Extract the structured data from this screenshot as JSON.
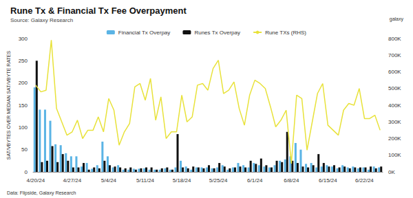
{
  "chart_data": {
    "type": "bar",
    "title": "Rune Tx & Financial Tx Fee Overpayment",
    "subtitle": "Source: Galaxy Research",
    "source_note": "Data: Flipside, Galaxy Research",
    "brand": "galaxy",
    "y_label": "SAT/VBYTES OVER MEDIAN SAT/VBYTE RATES",
    "categories": [
      "4/20/24",
      null,
      null,
      null,
      null,
      null,
      null,
      "4/27/24",
      null,
      null,
      null,
      null,
      null,
      null,
      "5/4/24",
      null,
      null,
      null,
      null,
      null,
      null,
      "5/11/24",
      null,
      null,
      null,
      null,
      null,
      null,
      "5/18/24",
      null,
      null,
      null,
      null,
      null,
      null,
      "5/25/24",
      null,
      null,
      null,
      null,
      null,
      null,
      "6/1/24",
      null,
      null,
      null,
      null,
      null,
      null,
      "6/8/24",
      null,
      null,
      null,
      null,
      null,
      null,
      "6/15/24",
      null,
      null,
      null,
      null,
      null,
      null,
      "6/22/24",
      null,
      null,
      null
    ],
    "series": [
      {
        "name": "Financial Tx Overpay",
        "type": "bar",
        "color": "#5bb4e5",
        "values": [
          190,
          140,
          140,
          115,
          62,
          60,
          42,
          35,
          35,
          12,
          20,
          7,
          15,
          68,
          35,
          10,
          15,
          5,
          5,
          7,
          7,
          8,
          5,
          5,
          5,
          8,
          5,
          10,
          25,
          12,
          5,
          10,
          10,
          10,
          8,
          10,
          15,
          5,
          10,
          20,
          15,
          10,
          20,
          15,
          12,
          10,
          15,
          25,
          28,
          35,
          65,
          50,
          18,
          20,
          10,
          12,
          15,
          12,
          8,
          15,
          10,
          12,
          8,
          10,
          5,
          12,
          10
        ]
      },
      {
        "name": "Runes Tx Overpay",
        "type": "bar",
        "color": "#111111",
        "values": [
          250,
          22,
          25,
          58,
          22,
          40,
          25,
          10,
          10,
          20,
          5,
          10,
          8,
          25,
          15,
          12,
          10,
          8,
          10,
          5,
          8,
          10,
          10,
          5,
          8,
          10,
          5,
          85,
          10,
          8,
          12,
          10,
          8,
          15,
          8,
          20,
          12,
          8,
          10,
          12,
          10,
          25,
          18,
          30,
          15,
          10,
          25,
          22,
          90,
          25,
          20,
          12,
          10,
          15,
          40,
          20,
          12,
          15,
          10,
          12,
          8,
          10,
          10,
          10,
          12,
          8,
          12
        ]
      },
      {
        "name": "Rune TXs (RHS)",
        "type": "line",
        "axis": "y2",
        "color": "#e8e23a",
        "values": [
          520000,
          480000,
          490000,
          790000,
          380000,
          300000,
          220000,
          240000,
          310000,
          200000,
          250000,
          250000,
          330000,
          240000,
          440000,
          370000,
          160000,
          240000,
          290000,
          510000,
          530000,
          430000,
          560000,
          310000,
          450000,
          200000,
          240000,
          240000,
          460000,
          300000,
          330000,
          520000,
          530000,
          490000,
          620000,
          670000,
          470000,
          490000,
          540000,
          380000,
          280000,
          460000,
          550000,
          530000,
          500000,
          390000,
          270000,
          310000,
          370000,
          50000,
          460000,
          440000,
          130000,
          300000,
          470000,
          530000,
          280000,
          250000,
          220000,
          370000,
          410000,
          400000,
          500000,
          320000,
          320000,
          340000,
          250000
        ]
      }
    ],
    "ylim": [
      0,
      300
    ],
    "yticks": [
      0,
      50,
      100,
      150,
      200,
      250,
      300
    ],
    "y2lim": [
      0,
      800000
    ],
    "y2ticks": [
      {
        "value": 0,
        "label": "0K"
      },
      {
        "value": 100000,
        "label": "100K"
      },
      {
        "value": 200000,
        "label": "200K"
      },
      {
        "value": 300000,
        "label": "300K"
      },
      {
        "value": 400000,
        "label": "400K"
      },
      {
        "value": 500000,
        "label": "500K"
      },
      {
        "value": 600000,
        "label": "600K"
      },
      {
        "value": 700000,
        "label": "700K"
      },
      {
        "value": 800000,
        "label": "800K"
      }
    ],
    "grid": false,
    "legend": "top"
  }
}
